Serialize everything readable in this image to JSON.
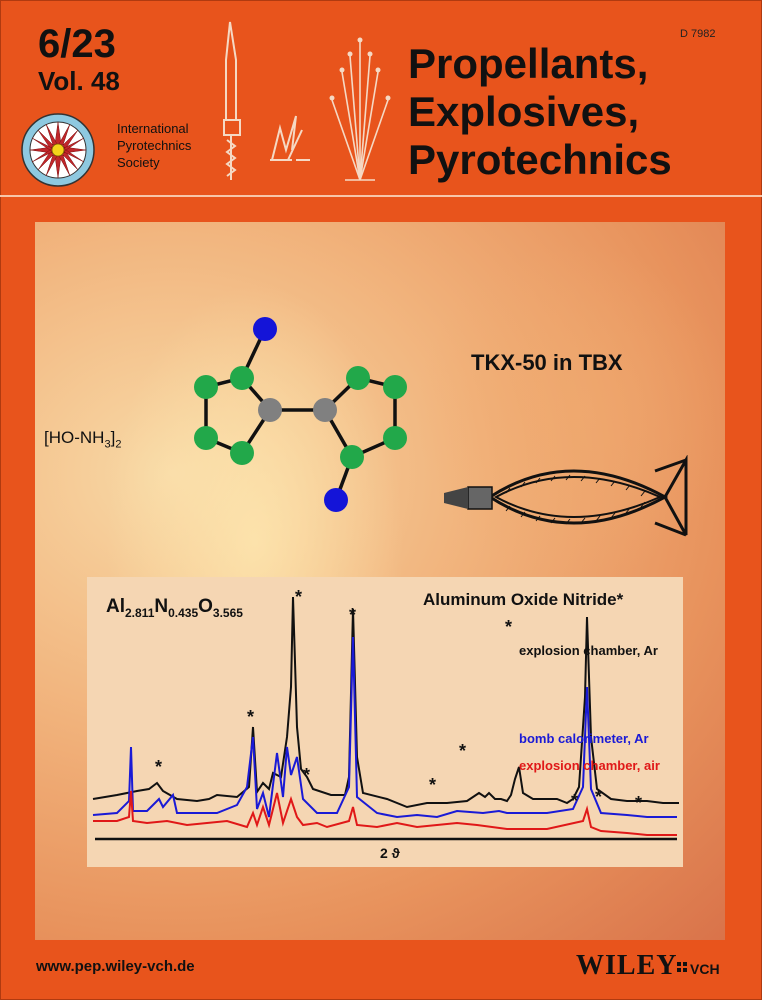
{
  "issue": "6/23",
  "volume": "Vol. 48",
  "code": "D 7982",
  "title_lines": [
    "Propellants,",
    "Explosives,",
    "Pyrotechnics"
  ],
  "society_lines": [
    "International",
    "Pyrotechnics",
    "Society"
  ],
  "cover": {
    "molecule_label": "[HO-NH3]2",
    "molecule_label_main": "[HO-NH",
    "molecule_label_sub": "3",
    "molecule_label_end": "]",
    "molecule_label_sub2": "2",
    "headline": "TKX-50 in TBX",
    "formula_parts": [
      "Al",
      "2.811",
      "N",
      "0.435",
      "O",
      "3.565"
    ],
    "spectrum_title": "Aluminum Oxide Nitride*",
    "series": [
      {
        "name": "explosion chamber, Ar",
        "color": "#111111"
      },
      {
        "name": "bomb calorimeter, Ar",
        "color": "#1a1ad6"
      },
      {
        "name": "explosion chamber, air",
        "color": "#e01818"
      }
    ],
    "x_axis_label": "2 ϑ"
  },
  "footer": {
    "url": "www.pep.wiley-vch.de",
    "publisher": "WILEY",
    "publisher_suffix": "VCH"
  },
  "colors": {
    "background": "#e8541c",
    "atom_green": "#22a84a",
    "atom_grey": "#808080",
    "atom_blue": "#1414d8"
  }
}
